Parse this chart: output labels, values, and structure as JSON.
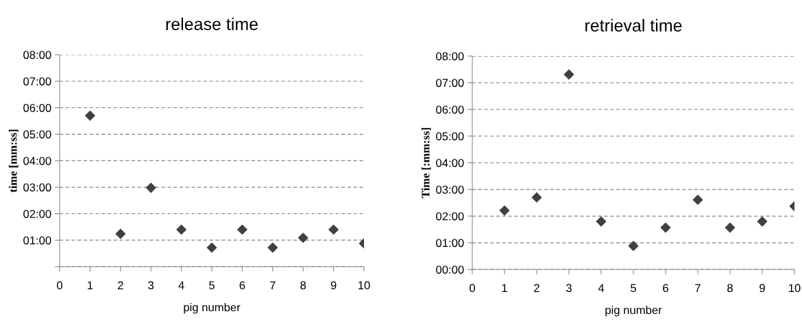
{
  "chart_data": [
    {
      "type": "scatter",
      "title": "release time",
      "xlabel": "pig number",
      "ylabel": "time [mm:ss]",
      "x": [
        1,
        2,
        3,
        4,
        5,
        6,
        7,
        8,
        9,
        10
      ],
      "series": [
        {
          "color": "#404040",
          "values": [
            5.7,
            1.24,
            2.98,
            1.4,
            0.72,
            1.4,
            0.72,
            1.09,
            1.4,
            0.88
          ]
        }
      ],
      "xlim": [
        0,
        10
      ],
      "xticks": [
        0,
        1,
        2,
        3,
        4,
        5,
        6,
        7,
        8,
        9,
        10
      ],
      "ylim": [
        0,
        8
      ],
      "yticks": [
        {
          "value": 0,
          "label": null
        },
        {
          "value": 1,
          "label": "01:00"
        },
        {
          "value": 2,
          "label": "02:00"
        },
        {
          "value": 3,
          "label": "03:00"
        },
        {
          "value": 4,
          "label": "04:00"
        },
        {
          "value": 5,
          "label": "05:00"
        },
        {
          "value": 6,
          "label": "06:00"
        },
        {
          "value": 7,
          "label": "07:00"
        },
        {
          "value": 8,
          "label": "08:00"
        }
      ],
      "grid": "y",
      "marker": "diamond"
    },
    {
      "type": "scatter",
      "title": "retrieval time",
      "xlabel": "pig number",
      "ylabel": "Time [:mm:ss]",
      "x": [
        1,
        2,
        3,
        4,
        5,
        6,
        7,
        8,
        9,
        10
      ],
      "series": [
        {
          "color": "#404040",
          "values": [
            2.21,
            2.7,
            7.31,
            1.8,
            0.88,
            1.57,
            2.61,
            1.57,
            1.8,
            2.37
          ]
        }
      ],
      "xlim": [
        0,
        10
      ],
      "xticks": [
        0,
        1,
        2,
        3,
        4,
        5,
        6,
        7,
        8,
        9,
        10
      ],
      "ylim": [
        0,
        8
      ],
      "yticks": [
        {
          "value": 0,
          "label": "00:00"
        },
        {
          "value": 1,
          "label": "01:00"
        },
        {
          "value": 2,
          "label": "02:00"
        },
        {
          "value": 3,
          "label": "03:00"
        },
        {
          "value": 4,
          "label": "04:00"
        },
        {
          "value": 5,
          "label": "05:00"
        },
        {
          "value": 6,
          "label": "06:00"
        },
        {
          "value": 7,
          "label": "07:00"
        },
        {
          "value": 8,
          "label": "08:00"
        }
      ],
      "grid": "y",
      "marker": "diamond"
    }
  ]
}
